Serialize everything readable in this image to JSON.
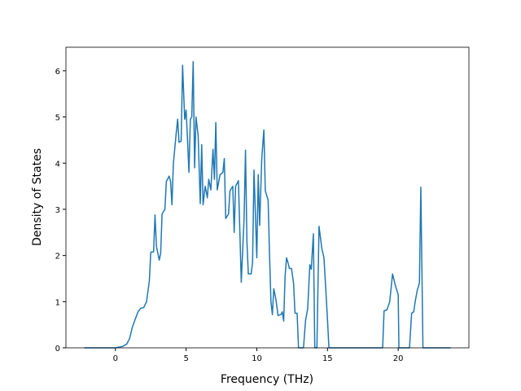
{
  "chart_data": {
    "type": "line",
    "x_label": "Frequency (THz)",
    "y_label": "Density of States",
    "xlim": [
      -3.5,
      25.0
    ],
    "ylim": [
      0,
      6.51
    ],
    "xticks": [
      0,
      5,
      10,
      15,
      20
    ],
    "yticks": [
      0,
      1,
      2,
      3,
      4,
      5,
      6
    ],
    "grid": false,
    "x": [
      -2.2,
      0,
      0.5,
      0.8,
      1.0,
      1.2,
      1.4,
      1.6,
      1.8,
      2.0,
      2.2,
      2.4,
      2.5,
      2.7,
      2.8,
      2.9,
      3.1,
      3.2,
      3.3,
      3.5,
      3.6,
      3.8,
      3.9,
      4.0,
      4.1,
      4.3,
      4.4,
      4.5,
      4.65,
      4.75,
      4.9,
      5.0,
      5.1,
      5.2,
      5.3,
      5.4,
      5.5,
      5.6,
      5.7,
      5.85,
      6.0,
      6.1,
      6.2,
      6.35,
      6.5,
      6.6,
      6.75,
      6.9,
      7.0,
      7.1,
      7.2,
      7.4,
      7.6,
      7.7,
      7.8,
      8.0,
      8.1,
      8.3,
      8.4,
      8.5,
      8.7,
      8.9,
      9.1,
      9.2,
      9.3,
      9.4,
      9.6,
      9.7,
      9.8,
      10.0,
      10.1,
      10.2,
      10.35,
      10.5,
      10.6,
      10.8,
      10.9,
      11.0,
      11.1,
      11.2,
      11.35,
      11.5,
      11.7,
      11.8,
      11.9,
      12.0,
      12.1,
      12.2,
      12.3,
      12.45,
      12.6,
      12.7,
      12.85,
      12.95,
      13.3,
      13.45,
      13.6,
      13.75,
      13.85,
      14.0,
      14.1,
      14.25,
      14.4,
      14.6,
      14.75,
      15.0,
      15.1,
      18.9,
      19.0,
      19.2,
      19.4,
      19.6,
      19.8,
      20.0,
      20.05,
      20.8,
      20.95,
      21.1,
      21.2,
      21.35,
      21.5,
      21.6,
      21.75,
      23.7
    ],
    "series": [
      {
        "color": "#1f77b4",
        "values": [
          0,
          0,
          0.03,
          0.08,
          0.2,
          0.45,
          0.62,
          0.78,
          0.86,
          0.87,
          1.0,
          1.45,
          2.07,
          2.08,
          2.88,
          2.2,
          1.9,
          2.05,
          2.9,
          3.0,
          3.6,
          3.72,
          3.6,
          3.1,
          4.0,
          4.65,
          4.95,
          4.45,
          4.48,
          6.12,
          4.95,
          5.15,
          4.5,
          3.8,
          4.95,
          5.0,
          6.2,
          3.9,
          5.0,
          4.6,
          3.12,
          4.4,
          3.1,
          3.5,
          3.25,
          3.65,
          3.42,
          4.3,
          3.65,
          4.88,
          3.42,
          3.75,
          3.8,
          4.1,
          2.8,
          2.9,
          3.4,
          3.5,
          2.5,
          3.5,
          3.62,
          1.42,
          2.8,
          4.28,
          2.3,
          1.6,
          1.6,
          1.85,
          3.85,
          1.95,
          3.75,
          2.65,
          4.1,
          4.72,
          3.4,
          3.2,
          2.0,
          1.0,
          0.72,
          1.28,
          1.05,
          0.7,
          0.72,
          0.78,
          0.58,
          1.55,
          1.95,
          1.85,
          1.72,
          1.72,
          1.4,
          0.75,
          0.75,
          0,
          0,
          0.6,
          0.85,
          1.8,
          1.7,
          2.47,
          0,
          0,
          2.63,
          2.15,
          1.95,
          0.6,
          0,
          0,
          0.8,
          0.82,
          1.0,
          1.6,
          1.35,
          1.15,
          0,
          0,
          0.75,
          0.78,
          1.0,
          1.25,
          1.4,
          3.48,
          0,
          0
        ]
      }
    ]
  }
}
